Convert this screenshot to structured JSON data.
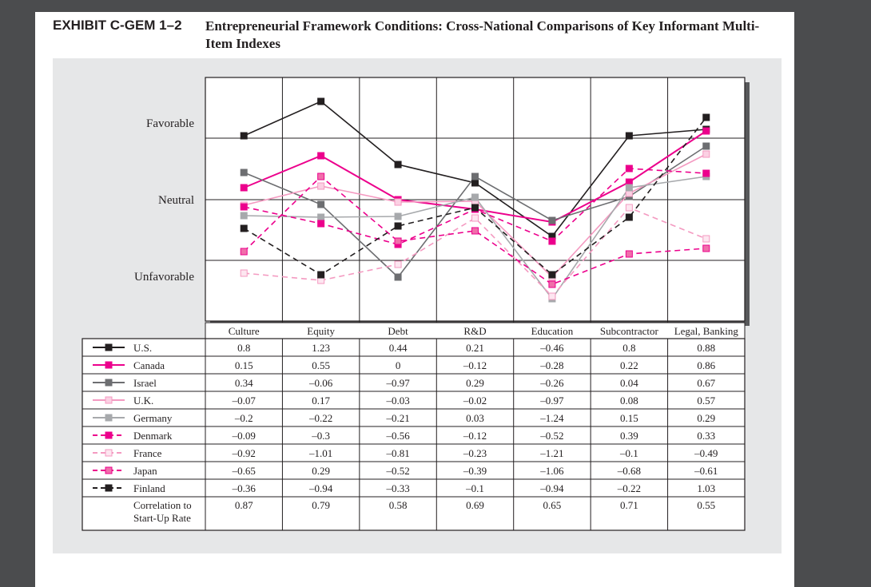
{
  "header": {
    "exhibit_label": "EXHIBIT C-GEM 1–2",
    "title": "Entrepreneurial Framework Conditions: Cross-National Comparisons of Key Informant Multi-Item Indexes"
  },
  "chart_data": {
    "type": "line",
    "categories": [
      "Culture",
      "Equity",
      "Debt",
      "R&D",
      "Education",
      "Subcontractor",
      "Legal, Banking"
    ],
    "y_labels": [
      "Favorable",
      "Neutral",
      "Unfavorable"
    ],
    "ylim": [
      -1.52,
      1.53
    ],
    "grid": true,
    "legend_placement": "table-left",
    "series": [
      {
        "name": "U.S.",
        "values": [
          0.8,
          1.23,
          0.44,
          0.21,
          -0.46,
          0.8,
          0.88
        ],
        "color": "#231f20",
        "dashed": false,
        "marker_fill": "#231f20"
      },
      {
        "name": "Canada",
        "values": [
          0.15,
          0.55,
          0,
          -0.12,
          -0.28,
          0.22,
          0.86
        ],
        "color": "#ec008c",
        "dashed": false,
        "marker_fill": "#ec008c"
      },
      {
        "name": "Israel",
        "values": [
          0.34,
          -0.06,
          -0.97,
          0.29,
          -0.26,
          0.04,
          0.67
        ],
        "color": "#6d6e71",
        "dashed": false,
        "marker_fill": "#6d6e71"
      },
      {
        "name": "U.K.",
        "values": [
          -0.07,
          0.17,
          -0.03,
          -0.02,
          -0.97,
          0.08,
          0.57
        ],
        "color": "#f49ac1",
        "dashed": false,
        "marker_fill": "#fbd0e3"
      },
      {
        "name": "Germany",
        "values": [
          -0.2,
          -0.22,
          -0.21,
          0.03,
          -1.24,
          0.15,
          0.29
        ],
        "color": "#a7a9ac",
        "dashed": false,
        "marker_fill": "#a7a9ac"
      },
      {
        "name": "Denmark",
        "values": [
          -0.09,
          -0.3,
          -0.56,
          -0.12,
          -0.52,
          0.39,
          0.33
        ],
        "color": "#ec008c",
        "dashed": true,
        "marker_fill": "#ec008c"
      },
      {
        "name": "France",
        "values": [
          -0.92,
          -1.01,
          -0.81,
          -0.23,
          -1.21,
          -0.1,
          -0.49
        ],
        "color": "#f49ac1",
        "dashed": true,
        "marker_fill": "#fde6f0"
      },
      {
        "name": "Japan",
        "values": [
          -0.65,
          0.29,
          -0.52,
          -0.39,
          -1.06,
          -0.68,
          -0.61
        ],
        "color": "#ec008c",
        "dashed": true,
        "marker_fill": "#f06eaa"
      },
      {
        "name": "Finland",
        "values": [
          -0.36,
          -0.94,
          -0.33,
          -0.1,
          -0.94,
          -0.22,
          1.03
        ],
        "color": "#231f20",
        "dashed": true,
        "marker_fill": "#231f20"
      }
    ],
    "table_values": [
      [
        "0.8",
        "1.23",
        "0.44",
        "0.21",
        "–0.46",
        "0.8",
        "0.88"
      ],
      [
        "0.15",
        "0.55",
        "0",
        "–0.12",
        "–0.28",
        "0.22",
        "0.86"
      ],
      [
        "0.34",
        "–0.06",
        "–0.97",
        "0.29",
        "–0.26",
        "0.04",
        "0.67"
      ],
      [
        "–0.07",
        "0.17",
        "–0.03",
        "–0.02",
        "–0.97",
        "0.08",
        "0.57"
      ],
      [
        "–0.2",
        "–0.22",
        "–0.21",
        "0.03",
        "–1.24",
        "0.15",
        "0.29"
      ],
      [
        "–0.09",
        "–0.3",
        "–0.56",
        "–0.12",
        "–0.52",
        "0.39",
        "0.33"
      ],
      [
        "–0.92",
        "–1.01",
        "–0.81",
        "–0.23",
        "–1.21",
        "–0.1",
        "–0.49"
      ],
      [
        "–0.65",
        "0.29",
        "–0.52",
        "–0.39",
        "–1.06",
        "–0.68",
        "–0.61"
      ],
      [
        "–0.36",
        "–0.94",
        "–0.33",
        "–0.1",
        "–0.94",
        "–0.22",
        "1.03"
      ]
    ],
    "correlation": {
      "label_line1": "Correlation to",
      "label_line2": "Start-Up Rate",
      "values": [
        "0.87",
        "0.79",
        "0.58",
        "0.69",
        "0.65",
        "0.71",
        "0.55"
      ]
    }
  }
}
